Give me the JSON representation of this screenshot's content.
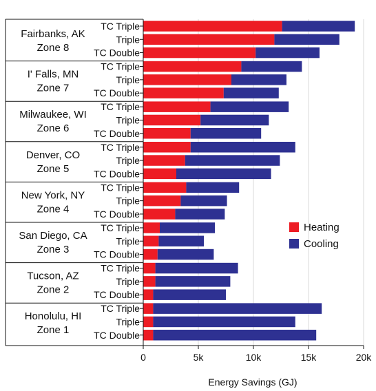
{
  "chart_data": {
    "type": "bar",
    "orientation": "horizontal",
    "stacked": true,
    "title": "",
    "xlabel": "Energy Savings (GJ)",
    "ylabel": "",
    "xlim": [
      0,
      20000
    ],
    "x_ticks": [
      0,
      5000,
      10000,
      15000,
      20000
    ],
    "x_tick_labels": [
      "0",
      "5k",
      "10k",
      "15k",
      "20k"
    ],
    "grid": "vertical",
    "legend_position": "right",
    "colors": {
      "Heating": "#ed1c24",
      "Cooling": "#2e3192"
    },
    "groups": [
      {
        "name": "Fairbanks, AK",
        "zone": "Zone 8"
      },
      {
        "name": "I' Falls, MN",
        "zone": "Zone 7"
      },
      {
        "name": "Milwaukee, WI",
        "zone": "Zone 6"
      },
      {
        "name": "Denver, CO",
        "zone": "Zone 5"
      },
      {
        "name": "New York, NY",
        "zone": "Zone 4"
      },
      {
        "name": "San Diego, CA",
        "zone": "Zone 3"
      },
      {
        "name": "Tucson, AZ",
        "zone": "Zone 2"
      },
      {
        "name": "Honolulu, HI",
        "zone": "Zone 1"
      }
    ],
    "categories": [
      "TC Triple",
      "Triple",
      "TC Double"
    ],
    "series": [
      {
        "name": "Heating",
        "values": [
          [
            12600,
            11900,
            10200
          ],
          [
            8900,
            8000,
            7300
          ],
          [
            6100,
            5200,
            4300
          ],
          [
            4300,
            3800,
            3000
          ],
          [
            3900,
            3400,
            2900
          ],
          [
            1500,
            1400,
            1300
          ],
          [
            1100,
            1100,
            900
          ],
          [
            900,
            900,
            900
          ]
        ]
      },
      {
        "name": "Cooling",
        "values": [
          [
            6600,
            5900,
            5800
          ],
          [
            5500,
            5000,
            5000
          ],
          [
            7100,
            6200,
            6400
          ],
          [
            9500,
            8600,
            8600
          ],
          [
            4800,
            4200,
            4500
          ],
          [
            5000,
            4100,
            5100
          ],
          [
            7500,
            6800,
            6600
          ],
          [
            15300,
            12900,
            14800
          ]
        ]
      }
    ]
  }
}
